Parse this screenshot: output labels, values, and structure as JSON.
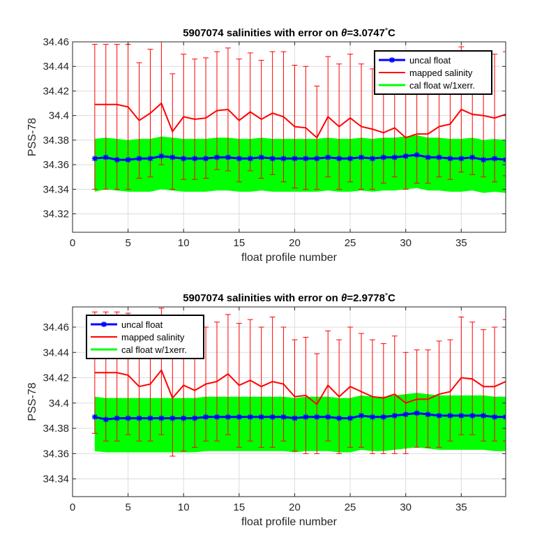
{
  "chart_data": [
    {
      "type": "line",
      "title_prefix": "5907074 salinities with error on ",
      "title_symbol": "θ",
      "title_value": "=3.0747",
      "title_degree": "°",
      "title_unit": "C",
      "xlabel": "float profile number",
      "ylabel": "PSS-78",
      "xlim": [
        0,
        39
      ],
      "ylim": [
        34.305,
        34.46
      ],
      "xticks": [
        0,
        5,
        10,
        15,
        20,
        25,
        30,
        35
      ],
      "xtick_labels": [
        "0",
        "5",
        "10",
        "15",
        "20",
        "25",
        "30",
        "35"
      ],
      "yticks": [
        34.32,
        34.34,
        34.36,
        34.38,
        34.4,
        34.42,
        34.44,
        34.46
      ],
      "ytick_labels": [
        "34.32",
        "34.34",
        "34.36",
        "34.38",
        "34.4",
        "34.42",
        "34.44",
        "34.46"
      ],
      "grid": true,
      "legend_position": "top-right",
      "legend": {
        "uncal": "uncal float",
        "mapped": "mapped salinity",
        "cal": "cal float w/1xerr."
      },
      "colors": {
        "uncal": "#0000ff",
        "mapped": "#ff0000",
        "cal": "#00ff00"
      },
      "x": [
        2,
        3,
        4,
        5,
        6,
        7,
        8,
        9,
        10,
        11,
        12,
        13,
        14,
        15,
        16,
        17,
        18,
        19,
        20,
        21,
        22,
        23,
        24,
        25,
        26,
        27,
        28,
        29,
        30,
        31,
        32,
        33,
        34,
        35,
        36,
        37,
        38,
        39
      ],
      "uncal": [
        34.365,
        34.366,
        34.364,
        34.364,
        34.365,
        34.365,
        34.367,
        34.366,
        34.365,
        34.365,
        34.365,
        34.366,
        34.366,
        34.365,
        34.365,
        34.366,
        34.365,
        34.365,
        34.365,
        34.365,
        34.365,
        34.366,
        34.365,
        34.365,
        34.366,
        34.365,
        34.366,
        34.366,
        34.367,
        34.368,
        34.366,
        34.366,
        34.365,
        34.365,
        34.366,
        34.364,
        34.365,
        34.364
      ],
      "mapped": [
        34.409,
        34.409,
        34.409,
        34.407,
        34.396,
        34.402,
        34.41,
        34.387,
        34.399,
        34.397,
        34.398,
        34.404,
        34.405,
        34.396,
        34.403,
        34.397,
        34.402,
        34.399,
        34.391,
        34.39,
        34.382,
        34.399,
        34.391,
        34.398,
        34.391,
        34.389,
        34.386,
        34.39,
        34.382,
        34.385,
        34.385,
        34.391,
        34.393,
        34.405,
        34.401,
        34.4,
        34.398,
        34.401
      ],
      "err_low": [
        34.34,
        34.34,
        34.34,
        34.34,
        34.349,
        34.35,
        34.36,
        34.34,
        34.348,
        34.348,
        34.349,
        34.356,
        34.355,
        34.346,
        34.355,
        34.349,
        34.352,
        34.346,
        34.341,
        34.34,
        34.34,
        34.35,
        34.34,
        34.346,
        34.34,
        34.34,
        34.345,
        34.35,
        34.34,
        34.345,
        34.345,
        34.35,
        34.348,
        34.354,
        34.352,
        34.35,
        34.346,
        34.351
      ],
      "err_high": [
        34.458,
        34.458,
        34.458,
        34.458,
        34.443,
        34.454,
        34.46,
        34.434,
        34.45,
        34.446,
        34.447,
        34.452,
        34.455,
        34.446,
        34.451,
        34.445,
        34.452,
        34.452,
        34.441,
        34.44,
        34.424,
        34.448,
        34.442,
        34.45,
        34.442,
        34.438,
        34.427,
        34.43,
        34.424,
        34.425,
        34.425,
        34.432,
        34.438,
        34.456,
        34.45,
        34.45,
        34.45,
        34.452
      ],
      "cal_low": [
        34.338,
        34.34,
        34.339,
        34.338,
        34.338,
        34.338,
        34.34,
        34.339,
        34.338,
        34.338,
        34.338,
        34.339,
        34.339,
        34.338,
        34.338,
        34.339,
        34.338,
        34.338,
        34.338,
        34.338,
        34.338,
        34.339,
        34.338,
        34.338,
        34.339,
        34.338,
        34.339,
        34.339,
        34.34,
        34.341,
        34.339,
        34.339,
        34.338,
        34.338,
        34.339,
        34.337,
        34.338,
        34.337
      ],
      "cal_high": [
        34.381,
        34.382,
        34.381,
        34.38,
        34.381,
        34.381,
        34.383,
        34.382,
        34.381,
        34.381,
        34.381,
        34.382,
        34.382,
        34.381,
        34.381,
        34.382,
        34.381,
        34.381,
        34.381,
        34.381,
        34.381,
        34.382,
        34.381,
        34.381,
        34.382,
        34.381,
        34.382,
        34.382,
        34.383,
        34.384,
        34.382,
        34.382,
        34.381,
        34.381,
        34.382,
        34.38,
        34.381,
        34.38
      ]
    },
    {
      "type": "line",
      "title_prefix": "5907074 salinities with error on ",
      "title_symbol": "θ",
      "title_value": "=2.9778",
      "title_degree": "°",
      "title_unit": "C",
      "xlabel": "float profile number",
      "ylabel": "PSS-78",
      "xlim": [
        0,
        39
      ],
      "ylim": [
        34.326,
        34.476
      ],
      "xticks": [
        0,
        5,
        10,
        15,
        20,
        25,
        30,
        35
      ],
      "xtick_labels": [
        "0",
        "5",
        "10",
        "15",
        "20",
        "25",
        "30",
        "35"
      ],
      "yticks": [
        34.34,
        34.36,
        34.38,
        34.4,
        34.42,
        34.44,
        34.46
      ],
      "ytick_labels": [
        "34.34",
        "34.36",
        "34.38",
        "34.4",
        "34.42",
        "34.44",
        "34.46"
      ],
      "grid": true,
      "legend_position": "top-left",
      "legend": {
        "uncal": "uncal float",
        "mapped": "mapped salinity",
        "cal": "cal float w/1xerr."
      },
      "colors": {
        "uncal": "#0000ff",
        "mapped": "#ff0000",
        "cal": "#00ff00"
      },
      "x": [
        2,
        3,
        4,
        5,
        6,
        7,
        8,
        9,
        10,
        11,
        12,
        13,
        14,
        15,
        16,
        17,
        18,
        19,
        20,
        21,
        22,
        23,
        24,
        25,
        26,
        27,
        28,
        29,
        30,
        31,
        32,
        33,
        34,
        35,
        36,
        37,
        38,
        39
      ],
      "uncal": [
        34.389,
        34.387,
        34.388,
        34.388,
        34.388,
        34.388,
        34.388,
        34.388,
        34.388,
        34.388,
        34.389,
        34.389,
        34.389,
        34.389,
        34.389,
        34.389,
        34.389,
        34.389,
        34.388,
        34.389,
        34.389,
        34.389,
        34.388,
        34.388,
        34.39,
        34.389,
        34.389,
        34.39,
        34.391,
        34.392,
        34.391,
        34.39,
        34.39,
        34.39,
        34.39,
        34.39,
        34.389,
        34.389
      ],
      "mapped": [
        34.424,
        34.424,
        34.424,
        34.422,
        34.413,
        34.415,
        34.426,
        34.404,
        34.414,
        34.41,
        34.415,
        34.417,
        34.423,
        34.414,
        34.418,
        34.413,
        34.417,
        34.415,
        34.405,
        34.406,
        34.399,
        34.414,
        34.405,
        34.413,
        34.409,
        34.405,
        34.404,
        34.407,
        34.4,
        34.403,
        34.403,
        34.407,
        34.409,
        34.42,
        34.419,
        34.413,
        34.413,
        34.417
      ],
      "err_low": [
        34.376,
        34.37,
        34.37,
        34.375,
        34.37,
        34.37,
        34.375,
        34.358,
        34.362,
        34.365,
        34.37,
        34.37,
        34.375,
        34.365,
        34.37,
        34.365,
        34.365,
        34.37,
        34.362,
        34.36,
        34.36,
        34.37,
        34.36,
        34.365,
        34.365,
        34.36,
        34.36,
        34.36,
        34.36,
        34.365,
        34.365,
        34.365,
        34.37,
        34.375,
        34.375,
        34.37,
        34.37,
        34.37
      ],
      "err_high": [
        34.472,
        34.472,
        34.472,
        34.471,
        34.456,
        34.46,
        34.475,
        34.45,
        34.466,
        34.455,
        34.46,
        34.464,
        34.47,
        34.463,
        34.466,
        34.46,
        34.468,
        34.46,
        34.45,
        34.452,
        34.439,
        34.457,
        34.45,
        34.46,
        34.455,
        34.45,
        34.447,
        34.453,
        34.44,
        34.442,
        34.442,
        34.449,
        34.45,
        34.468,
        34.464,
        34.458,
        34.46,
        34.466
      ],
      "cal_low": [
        34.362,
        34.361,
        34.361,
        34.361,
        34.361,
        34.361,
        34.361,
        34.361,
        34.361,
        34.361,
        34.362,
        34.362,
        34.362,
        34.362,
        34.362,
        34.362,
        34.362,
        34.362,
        34.361,
        34.362,
        34.362,
        34.362,
        34.361,
        34.361,
        34.363,
        34.362,
        34.362,
        34.363,
        34.364,
        34.365,
        34.364,
        34.363,
        34.363,
        34.363,
        34.363,
        34.363,
        34.362,
        34.362
      ],
      "cal_high": [
        34.405,
        34.404,
        34.404,
        34.404,
        34.404,
        34.404,
        34.404,
        34.404,
        34.404,
        34.404,
        34.405,
        34.405,
        34.405,
        34.405,
        34.405,
        34.405,
        34.405,
        34.405,
        34.404,
        34.405,
        34.405,
        34.405,
        34.404,
        34.404,
        34.406,
        34.405,
        34.405,
        34.406,
        34.407,
        34.408,
        34.407,
        34.406,
        34.406,
        34.406,
        34.406,
        34.406,
        34.405,
        34.405
      ]
    }
  ]
}
